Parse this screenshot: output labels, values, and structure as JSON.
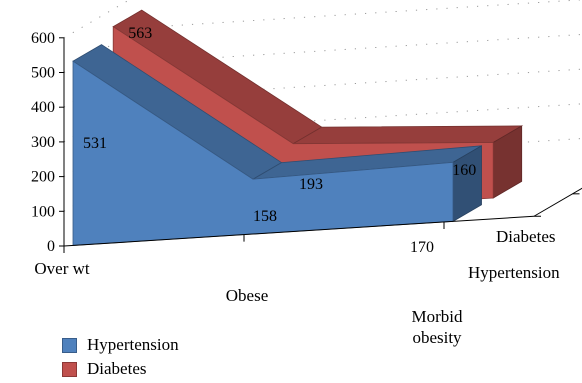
{
  "chart_data": {
    "type": "area",
    "categories": [
      "Over wt",
      "Obese",
      "Morbid obesity"
    ],
    "series": [
      {
        "name": "Hypertension",
        "values": [
          531,
          158,
          170
        ],
        "color": "#4F81BD"
      },
      {
        "name": "Diabetes",
        "values": [
          563,
          193,
          160
        ],
        "color": "#C0504D"
      }
    ],
    "depth_labels": [
      "Hypertension",
      "Diabetes"
    ],
    "ylim": [
      0,
      600
    ],
    "yticks": [
      "0",
      "100",
      "200",
      "300",
      "400",
      "500",
      "600"
    ],
    "grid": true,
    "legend": "bottom-left",
    "three_d": true
  },
  "legend": [
    {
      "label": "Hypertension",
      "color": "#4F81BD"
    },
    {
      "label": "Diabetes",
      "color": "#C0504D"
    }
  ]
}
